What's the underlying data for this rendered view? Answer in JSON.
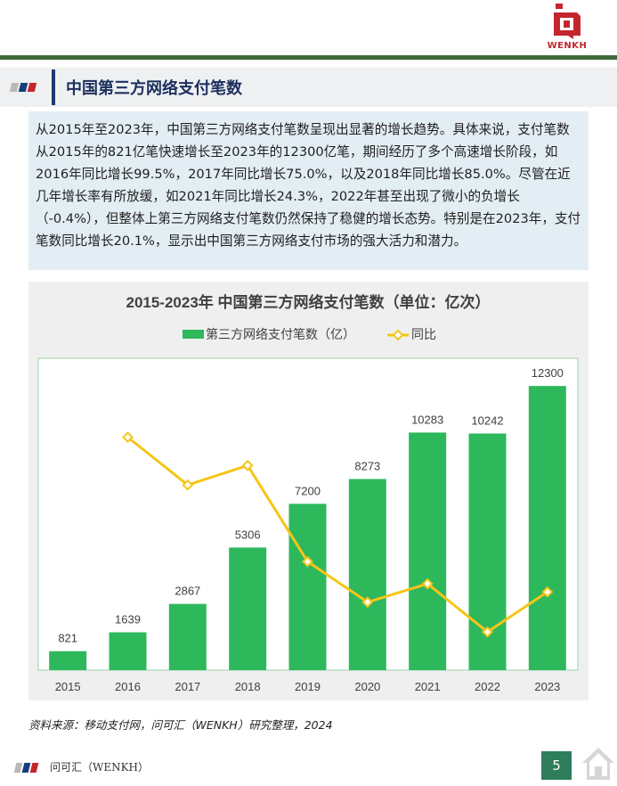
{
  "brand": {
    "logo_text": "WENKH"
  },
  "section": {
    "title": "中国第三方网络支付笔数"
  },
  "summary": {
    "paragraph": "从2015年至2023年，中国第三方网络支付笔数呈现出显著的增长趋势。具体来说，支付笔数从2015年的821亿笔快速增长至2023年的12300亿笔，期间经历了多个高速增长阶段，如2016年同比增长99.5%，2017年同比增长75.0%，以及2018年同比增长85.0%。尽管在近几年增长率有所放缓，如2021年同比增长24.3%，2022年甚至出现了微小的负增长（-0.4%），但整体上第三方网络支付笔数仍然保持了稳健的增长态势。特别是在2023年，支付笔数同比增长20.1%，显示出中国第三方网络支付市场的强大活力和潜力。"
  },
  "chart_data": {
    "type": "bar",
    "title": "2015-2023年 中国第三方网络支付笔数（单位：亿次）",
    "categories": [
      "2015",
      "2016",
      "2017",
      "2018",
      "2019",
      "2020",
      "2021",
      "2022",
      "2023"
    ],
    "series": [
      {
        "name": "第三方网络支付笔数（亿）",
        "type": "bar",
        "values": [
          821,
          1639,
          2867,
          5306,
          7200,
          8273,
          10283,
          10242,
          12300
        ],
        "color": "#2eb85c"
      },
      {
        "name": "同比",
        "type": "line",
        "axis": "secondary",
        "values": [
          null,
          99.5,
          75.0,
          85.0,
          35.7,
          14.9,
          24.3,
          -0.4,
          20.1
        ],
        "color": "#f5c518"
      }
    ],
    "data_labels": [
      "821",
      "1639",
      "2867",
      "5306",
      "7200",
      "8273",
      "10283",
      "10242",
      "12300"
    ],
    "ylim": [
      0,
      13500
    ],
    "y2lim": [
      -20,
      140
    ],
    "legend_position": "top-center",
    "grid": false
  },
  "footer": {
    "source": "资料来源：移动支付网，问可汇（WENKH）研究整理，2024",
    "brand_label": "问可汇（WENKH）",
    "page_number": "5"
  },
  "colors": {
    "primary_green": "#2eb85c",
    "line_yellow": "#f5c518",
    "title_navy": "#1c2f5e",
    "accent_red": "#c4262e",
    "rule_green": "#3f6b3a"
  }
}
